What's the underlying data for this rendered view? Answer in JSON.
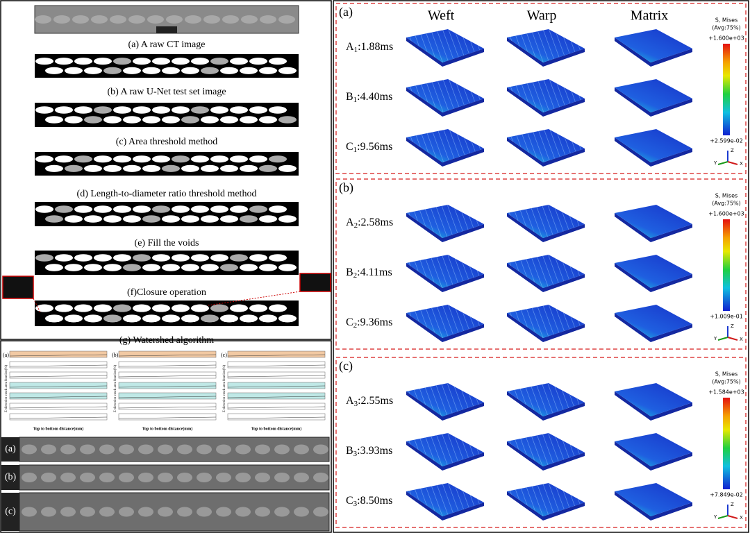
{
  "left": {
    "captions": [
      "(a) A raw CT image",
      "(b) A raw U-Net test set image",
      "(c) Area threshold method",
      "(d) Length-to-diameter ratio threshold method",
      "(e) Fill the voids",
      "(f)Closure operation",
      "(g) Watershed algorithm"
    ],
    "cracks": {
      "panels": [
        "(a)",
        "(b)",
        "(c)"
      ],
      "x_label": "Top to bottom distance(mm)",
      "y_label": "Z-direction crack area fraction(%)"
    },
    "ct_labels": [
      "(a)",
      "(b)",
      "(c)"
    ]
  },
  "right": {
    "columns": [
      "Weft",
      "Warp",
      "Matrix"
    ],
    "axes_labels": [
      "Y",
      "Z",
      "X"
    ],
    "panels": [
      {
        "label": "(a)",
        "rows": [
          {
            "letter": "A",
            "sub": "1",
            "time": ":1.88ms"
          },
          {
            "letter": "B",
            "sub": "1",
            "time": ":4.40ms"
          },
          {
            "letter": "C",
            "sub": "1",
            "time": ":9.56ms"
          }
        ],
        "legend": {
          "title": "S, Mises",
          "avg": "(Avg:75%)",
          "max": "+1.600e+03",
          "min": "+2.599e-02"
        }
      },
      {
        "label": "(b)",
        "rows": [
          {
            "letter": "A",
            "sub": "2",
            "time": ":2.58ms"
          },
          {
            "letter": "B",
            "sub": "2",
            "time": ":4.11ms"
          },
          {
            "letter": "C",
            "sub": "2",
            "time": ":9.36ms"
          }
        ],
        "legend": {
          "title": "S, Mises",
          "avg": "(Avg:75%)",
          "max": "+1.600e+03",
          "min": "+1.009e-01"
        }
      },
      {
        "label": "(c)",
        "rows": [
          {
            "letter": "A",
            "sub": "3",
            "time": ":2.55ms"
          },
          {
            "letter": "B",
            "sub": "3",
            "time": ":3.93ms"
          },
          {
            "letter": "C",
            "sub": "3",
            "time": ":8.50ms"
          }
        ],
        "legend": {
          "title": "S, Mises",
          "avg": "(Avg:75%)",
          "max": "+1.584e+03",
          "min": "+7.849e-02"
        }
      }
    ]
  }
}
